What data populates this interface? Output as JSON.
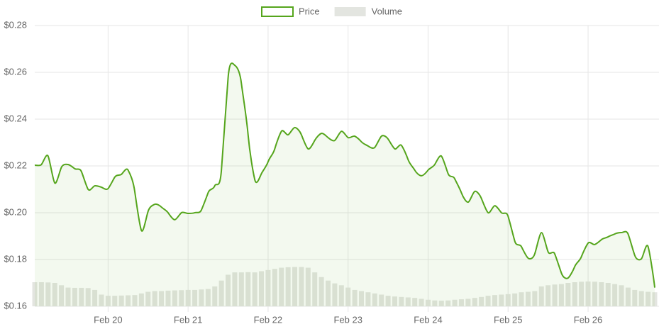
{
  "chart_data": {
    "type": "line",
    "categories": [
      null,
      null,
      null,
      null,
      null,
      null,
      null,
      null,
      null,
      null,
      null,
      "Feb 20",
      null,
      null,
      null,
      null,
      null,
      null,
      null,
      null,
      null,
      null,
      null,
      "Feb 21",
      null,
      null,
      null,
      null,
      null,
      null,
      null,
      null,
      null,
      null,
      null,
      "Feb 22",
      null,
      null,
      null,
      null,
      null,
      null,
      null,
      null,
      null,
      null,
      null,
      "Feb 23",
      null,
      null,
      null,
      null,
      null,
      null,
      null,
      null,
      null,
      null,
      null,
      "Feb 24",
      null,
      null,
      null,
      null,
      null,
      null,
      null,
      null,
      null,
      null,
      null,
      "Feb 25",
      null,
      null,
      null,
      null,
      null,
      null,
      null,
      null,
      null,
      null,
      null,
      "Feb 26",
      null,
      null,
      null,
      null,
      null,
      null,
      null,
      null,
      null,
      null
    ],
    "series": [
      {
        "name": "Price",
        "type": "line",
        "color": "#55a51c",
        "values": [
          0.2203,
          0.2206,
          0.2242,
          0.2127,
          0.2194,
          0.2206,
          0.2188,
          0.2176,
          0.21,
          0.2115,
          0.2109,
          0.2103,
          0.2152,
          0.2164,
          0.2182,
          0.2091,
          0.1924,
          0.2006,
          0.2036,
          0.2024,
          0.2,
          0.197,
          0.2,
          0.1997,
          0.2,
          0.2012,
          0.2085,
          0.2115,
          0.2182,
          0.2576,
          0.263,
          0.2552,
          0.2333,
          0.2142,
          0.2167,
          0.2218,
          0.2273,
          0.2348,
          0.2333,
          0.2364,
          0.2333,
          0.2273,
          0.2309,
          0.2339,
          0.2321,
          0.2309,
          0.2348,
          0.2321,
          0.2327,
          0.2303,
          0.2285,
          0.2279,
          0.2327,
          0.2315,
          0.2273,
          0.2288,
          0.2227,
          0.2182,
          0.2158,
          0.2182,
          0.2206,
          0.2242,
          0.2167,
          0.2145,
          0.2085,
          0.2045,
          0.2091,
          0.2061,
          0.2,
          0.203,
          0.2,
          0.1985,
          0.1879,
          0.1855,
          0.1806,
          0.1824,
          0.1915,
          0.1833,
          0.1824,
          0.1742,
          0.1721,
          0.177,
          0.1812,
          0.187,
          0.1864,
          0.1885,
          0.1897,
          0.1909,
          0.1915,
          0.1909,
          0.1818,
          0.1803,
          0.1855,
          0.168
        ]
      },
      {
        "name": "Volume",
        "type": "bar",
        "color": "#e3e5e0",
        "values": [
          0.1703,
          0.1703,
          0.1702,
          0.17,
          0.169,
          0.168,
          0.1679,
          0.1679,
          0.1678,
          0.167,
          0.165,
          0.1645,
          0.1645,
          0.1646,
          0.1647,
          0.1648,
          0.1655,
          0.1662,
          0.1665,
          0.1665,
          0.1667,
          0.1668,
          0.1669,
          0.167,
          0.167,
          0.1672,
          0.1674,
          0.1685,
          0.171,
          0.1735,
          0.1745,
          0.1745,
          0.1746,
          0.1745,
          0.175,
          0.1755,
          0.176,
          0.1765,
          0.1767,
          0.1768,
          0.1768,
          0.1765,
          0.1745,
          0.1725,
          0.171,
          0.1698,
          0.169,
          0.168,
          0.167,
          0.1665,
          0.166,
          0.1655,
          0.165,
          0.1645,
          0.1642,
          0.164,
          0.1638,
          0.1636,
          0.1632,
          0.1628,
          0.1625,
          0.1624,
          0.1625,
          0.1628,
          0.163,
          0.1632,
          0.1636,
          0.164,
          0.1645,
          0.1648,
          0.165,
          0.1652,
          0.1655,
          0.166,
          0.1662,
          0.1665,
          0.1685,
          0.169,
          0.1693,
          0.1695,
          0.17,
          0.1703,
          0.1705,
          0.1706,
          0.1705,
          0.1703,
          0.17,
          0.1695,
          0.169,
          0.168,
          0.167,
          0.1665,
          0.1662,
          0.166
        ]
      }
    ],
    "ylim": [
      0.16,
      0.28
    ],
    "yticks": [
      {
        "value": 0.16,
        "label": "$0.16"
      },
      {
        "value": 0.18,
        "label": "$0.18"
      },
      {
        "value": 0.2,
        "label": "$0.20"
      },
      {
        "value": 0.22,
        "label": "$0.22"
      },
      {
        "value": 0.24,
        "label": "$0.24"
      },
      {
        "value": 0.26,
        "label": "$0.26"
      },
      {
        "value": 0.28,
        "label": "$0.28"
      }
    ],
    "grid": true,
    "legend": "top"
  }
}
